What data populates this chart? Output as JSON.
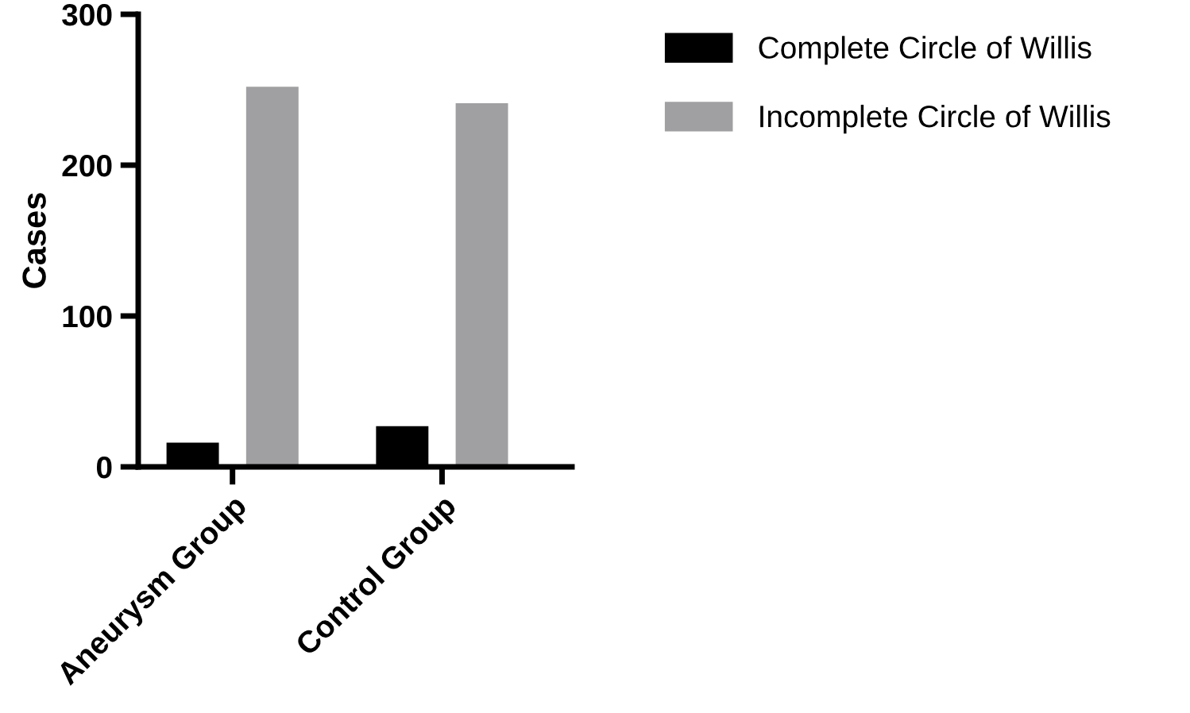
{
  "chart_data": {
    "type": "bar",
    "ylabel": "Cases",
    "categories": [
      "Aneurysm Group",
      "Control Group"
    ],
    "series": [
      {
        "name": "Complete Circle of Willis",
        "color": "#000000",
        "values": [
          16,
          27
        ]
      },
      {
        "name": "Incomplete Circle of Willis",
        "color": "#a0a0a2",
        "values": [
          252,
          241
        ]
      }
    ],
    "ylim": [
      0,
      300
    ],
    "yticks": [
      0,
      100,
      200,
      300
    ],
    "grid": false,
    "legend": "right"
  }
}
